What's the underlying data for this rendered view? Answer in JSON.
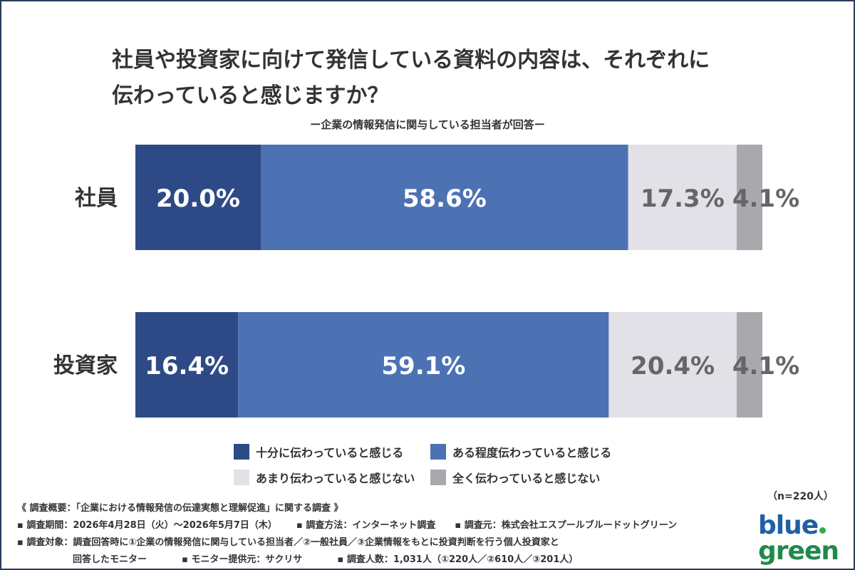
{
  "title_line1": "社員や投資家に向けて発信している資料の内容は、それぞれに",
  "title_line2": "伝わっていると感じますか？",
  "subtitle": "ー企業の情報発信に関与している担当者が回答ー",
  "chart_data": {
    "type": "bar",
    "orientation": "horizontal",
    "stacked": "100%",
    "categories": [
      "社員",
      "投資家"
    ],
    "series": [
      {
        "name": "十分に伝わっていると感じる",
        "values": [
          20.0,
          16.4
        ],
        "labels": [
          "20.0%",
          "16.4%"
        ],
        "color": "#2e4a86"
      },
      {
        "name": "ある程度伝わっていると感じる",
        "values": [
          58.6,
          59.1
        ],
        "labels": [
          "58.6%",
          "59.1%"
        ],
        "color": "#4c72b4"
      },
      {
        "name": "あまり伝わっていると感じない",
        "values": [
          17.3,
          20.4
        ],
        "labels": [
          "17.3%",
          "20.4%"
        ],
        "color": "#e3e1e8"
      },
      {
        "name": "全く伝わっていると感じない",
        "values": [
          4.1,
          4.1
        ],
        "labels": [
          "4.1%",
          "4.1%"
        ],
        "color": "#a9a8ad"
      }
    ],
    "legend_position": "bottom"
  },
  "n_label": "（n=220人）",
  "notes": {
    "overview": "《 調査概要：「企業における情報発信の伝達実態と理解促進」に関する調査 》",
    "period": "▪ 調査期間：2026年4月28日（火）〜2026年5月7日（木）",
    "method": "▪ 調査方法：インターネット調査",
    "organizer": "▪ 調査元：株式会社エスプールブルードットグリーン",
    "target": "▪ 調査対象：調査回答時に①企業の情報発信に関与している担当者／②一般社員／③企業情報をもとに投資判断を行う個人投資家と",
    "target2": "回答したモニター",
    "provider": "▪ モニター提供元：サクリサ",
    "respondents": "▪ 調査人数：1,031人（①220人／②610人／③201人）"
  },
  "logo": {
    "line1": "blue",
    "line2": "green",
    "accent": "#2fae4f"
  }
}
